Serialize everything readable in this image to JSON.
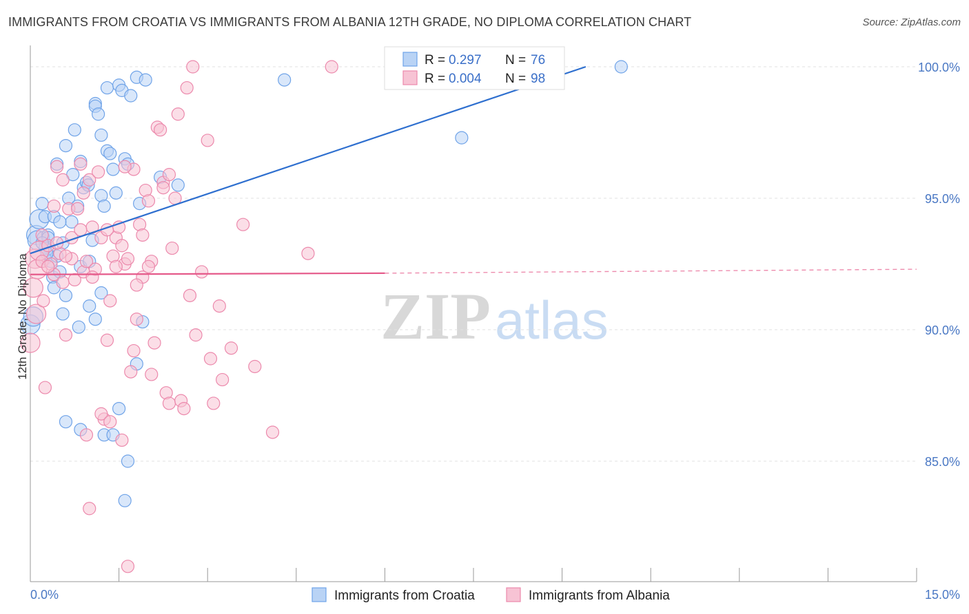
{
  "title": "IMMIGRANTS FROM CROATIA VS IMMIGRANTS FROM ALBANIA 12TH GRADE, NO DIPLOMA CORRELATION CHART",
  "source": "Source: ZipAtlas.com",
  "watermark": {
    "zip": "ZIP",
    "atlas": "atlas"
  },
  "chart_data": {
    "type": "scatter",
    "title": "IMMIGRANTS FROM CROATIA VS IMMIGRANTS FROM ALBANIA 12TH GRADE, NO DIPLOMA CORRELATION CHART",
    "xlabel": "",
    "ylabel": "12th Grade, No Diploma",
    "xlim": [
      0,
      15
    ],
    "ylim": [
      80.2,
      100.8
    ],
    "x_tick_labels": {
      "min": "0.0%",
      "max": "15.0%"
    },
    "y_ticks": [
      {
        "value": 100,
        "label": "100.0%"
      },
      {
        "value": 95,
        "label": "95.0%"
      },
      {
        "value": 90,
        "label": "90.0%"
      },
      {
        "value": 85,
        "label": "85.0%"
      }
    ],
    "legend": [
      {
        "r_label": "R =",
        "r_value": "0.297",
        "n_label": "N =",
        "n_value": "76"
      },
      {
        "r_label": "R =",
        "r_value": "0.004",
        "n_label": "N =",
        "n_value": "98"
      }
    ],
    "series": [
      {
        "name": "Immigrants from Croatia",
        "color": "#6fa3e8",
        "fill": "#b9d3f5",
        "trend": {
          "x0": 0.0,
          "y0": 92.9,
          "x1": 9.4,
          "y1": 100.0,
          "color": "#2e6fcf",
          "dashed_to": null
        },
        "points": [
          [
            0.0,
            90.2
          ],
          [
            0.05,
            90.5
          ],
          [
            0.1,
            93.6
          ],
          [
            0.12,
            93.4
          ],
          [
            0.15,
            94.2
          ],
          [
            0.2,
            94.8
          ],
          [
            0.22,
            93.5
          ],
          [
            0.25,
            92.7
          ],
          [
            0.25,
            94.3
          ],
          [
            0.3,
            93.6
          ],
          [
            0.3,
            93.5
          ],
          [
            0.32,
            93.1
          ],
          [
            0.35,
            92.6
          ],
          [
            0.38,
            92.0
          ],
          [
            0.4,
            91.6
          ],
          [
            0.45,
            96.3
          ],
          [
            0.5,
            92.2
          ],
          [
            0.55,
            90.6
          ],
          [
            0.6,
            97.0
          ],
          [
            0.6,
            91.3
          ],
          [
            0.65,
            95.0
          ],
          [
            0.7,
            94.1
          ],
          [
            0.72,
            95.9
          ],
          [
            0.75,
            97.6
          ],
          [
            0.8,
            94.7
          ],
          [
            0.82,
            90.1
          ],
          [
            0.85,
            96.4
          ],
          [
            0.85,
            92.4
          ],
          [
            0.9,
            95.4
          ],
          [
            0.95,
            95.6
          ],
          [
            0.98,
            95.5
          ],
          [
            1.0,
            92.6
          ],
          [
            1.05,
            93.4
          ],
          [
            1.1,
            98.6
          ],
          [
            1.1,
            98.5
          ],
          [
            1.15,
            98.2
          ],
          [
            1.2,
            97.4
          ],
          [
            1.2,
            95.1
          ],
          [
            1.25,
            94.7
          ],
          [
            1.3,
            99.2
          ],
          [
            1.3,
            96.8
          ],
          [
            1.35,
            96.7
          ],
          [
            1.4,
            96.1
          ],
          [
            1.45,
            95.2
          ],
          [
            1.5,
            99.3
          ],
          [
            1.55,
            99.1
          ],
          [
            1.6,
            96.5
          ],
          [
            1.65,
            96.3
          ],
          [
            1.7,
            98.9
          ],
          [
            1.8,
            99.6
          ],
          [
            1.95,
            99.5
          ],
          [
            2.2,
            95.8
          ],
          [
            2.5,
            95.5
          ],
          [
            1.0,
            90.9
          ],
          [
            1.1,
            90.4
          ],
          [
            1.2,
            91.4
          ],
          [
            1.25,
            86.0
          ],
          [
            1.4,
            86.0
          ],
          [
            1.5,
            87.0
          ],
          [
            1.65,
            85.0
          ],
          [
            1.6,
            83.5
          ],
          [
            1.8,
            88.7
          ],
          [
            1.9,
            90.3
          ],
          [
            0.6,
            86.5
          ],
          [
            0.85,
            86.2
          ],
          [
            0.25,
            93.1
          ],
          [
            0.45,
            92.8
          ],
          [
            0.55,
            93.3
          ],
          [
            0.28,
            92.9
          ],
          [
            0.2,
            93.3
          ],
          [
            0.4,
            94.3
          ],
          [
            0.5,
            94.1
          ],
          [
            1.85,
            94.8
          ],
          [
            4.3,
            99.5
          ],
          [
            7.3,
            97.3
          ],
          [
            10.0,
            100.0
          ]
        ]
      },
      {
        "name": "Immigrants from Albania",
        "color": "#ec89ac",
        "fill": "#f7c3d4",
        "trend": {
          "x0": 0.0,
          "y0": 92.1,
          "x1": 6.0,
          "y1": 92.15,
          "x2": 15.0,
          "y2": 92.3,
          "color": "#e55a8a"
        },
        "points": [
          [
            0.0,
            89.5
          ],
          [
            0.05,
            91.6
          ],
          [
            0.08,
            92.7
          ],
          [
            0.1,
            90.6
          ],
          [
            0.12,
            92.3
          ],
          [
            0.15,
            93.0
          ],
          [
            0.2,
            92.6
          ],
          [
            0.22,
            91.1
          ],
          [
            0.25,
            87.8
          ],
          [
            0.3,
            93.2
          ],
          [
            0.35,
            92.5
          ],
          [
            0.4,
            92.1
          ],
          [
            0.45,
            96.2
          ],
          [
            0.5,
            92.9
          ],
          [
            0.55,
            91.8
          ],
          [
            0.6,
            89.8
          ],
          [
            0.65,
            94.6
          ],
          [
            0.7,
            92.7
          ],
          [
            0.75,
            91.9
          ],
          [
            0.8,
            94.6
          ],
          [
            0.85,
            96.3
          ],
          [
            0.9,
            92.2
          ],
          [
            0.95,
            92.6
          ],
          [
            1.0,
            95.7
          ],
          [
            1.05,
            93.9
          ],
          [
            1.1,
            92.3
          ],
          [
            1.15,
            96.0
          ],
          [
            1.2,
            93.5
          ],
          [
            1.25,
            86.6
          ],
          [
            1.3,
            89.6
          ],
          [
            1.35,
            91.1
          ],
          [
            1.4,
            92.8
          ],
          [
            1.45,
            93.5
          ],
          [
            1.5,
            93.9
          ],
          [
            1.55,
            93.2
          ],
          [
            1.6,
            92.5
          ],
          [
            1.65,
            92.7
          ],
          [
            1.7,
            88.4
          ],
          [
            1.75,
            89.2
          ],
          [
            1.8,
            90.4
          ],
          [
            1.85,
            94.0
          ],
          [
            1.9,
            92.0
          ],
          [
            1.95,
            95.3
          ],
          [
            2.0,
            94.9
          ],
          [
            2.05,
            92.6
          ],
          [
            2.1,
            89.5
          ],
          [
            2.15,
            97.7
          ],
          [
            2.2,
            97.6
          ],
          [
            2.25,
            95.6
          ],
          [
            2.3,
            87.6
          ],
          [
            2.35,
            87.2
          ],
          [
            2.4,
            93.1
          ],
          [
            2.45,
            95.0
          ],
          [
            2.5,
            98.2
          ],
          [
            2.55,
            87.3
          ],
          [
            2.6,
            87.0
          ],
          [
            2.65,
            99.2
          ],
          [
            2.7,
            91.3
          ],
          [
            2.75,
            100.0
          ],
          [
            2.8,
            89.8
          ],
          [
            2.9,
            92.2
          ],
          [
            3.0,
            97.2
          ],
          [
            3.05,
            88.9
          ],
          [
            3.1,
            87.2
          ],
          [
            3.2,
            90.9
          ],
          [
            3.25,
            88.1
          ],
          [
            3.4,
            89.3
          ],
          [
            3.6,
            94.0
          ],
          [
            3.8,
            88.6
          ],
          [
            4.1,
            86.1
          ],
          [
            4.7,
            92.9
          ],
          [
            5.1,
            100.0
          ],
          [
            0.95,
            86.0
          ],
          [
            1.0,
            83.2
          ],
          [
            1.2,
            86.8
          ],
          [
            1.35,
            86.5
          ],
          [
            1.55,
            85.8
          ],
          [
            1.65,
            81.0
          ],
          [
            1.8,
            91.7
          ],
          [
            2.0,
            92.4
          ],
          [
            0.7,
            93.5
          ],
          [
            0.6,
            92.8
          ],
          [
            0.45,
            93.3
          ],
          [
            0.3,
            92.4
          ],
          [
            0.55,
            95.7
          ],
          [
            0.85,
            93.8
          ],
          [
            1.3,
            93.8
          ],
          [
            1.45,
            92.4
          ],
          [
            1.75,
            96.1
          ],
          [
            1.9,
            93.6
          ],
          [
            2.05,
            88.3
          ],
          [
            0.9,
            95.2
          ],
          [
            0.2,
            93.6
          ],
          [
            0.4,
            94.7
          ],
          [
            1.05,
            92.0
          ],
          [
            1.6,
            96.2
          ],
          [
            2.25,
            95.4
          ],
          [
            2.35,
            95.9
          ]
        ]
      }
    ]
  }
}
